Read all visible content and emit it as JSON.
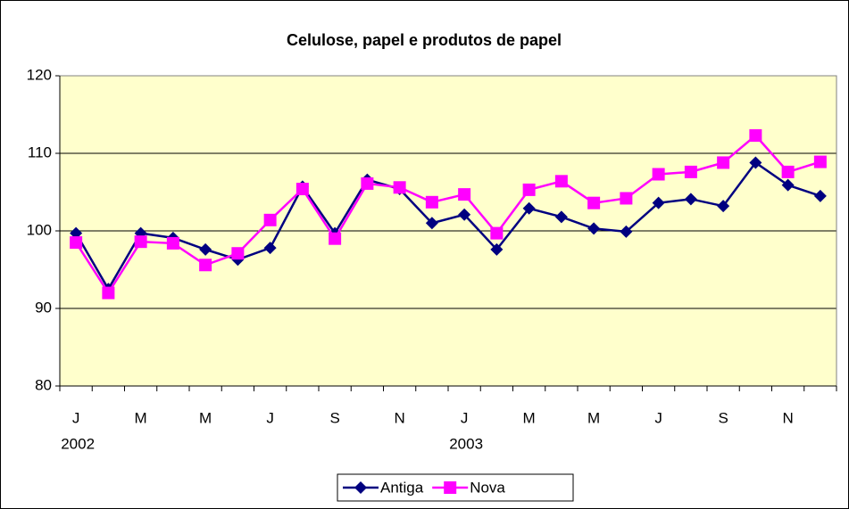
{
  "chart_data": {
    "type": "line",
    "title": "Celulose, papel e produtos de papel",
    "categories": [
      "J",
      null,
      "M",
      null,
      "M",
      null,
      "J",
      null,
      "S",
      null,
      "N",
      null,
      "J",
      null,
      "M",
      null,
      "M",
      null,
      "J",
      null,
      "S",
      null,
      "N",
      null
    ],
    "x_groups": [
      "2002",
      null,
      null,
      null,
      null,
      null,
      null,
      null,
      null,
      null,
      null,
      null,
      "2003",
      null,
      null,
      null,
      null,
      null,
      null,
      null,
      null,
      null,
      null,
      null
    ],
    "series": [
      {
        "name": "Antiga",
        "color": "#000080",
        "marker": "diamond",
        "values": [
          99.7,
          92.5,
          99.7,
          99.1,
          97.6,
          96.3,
          97.8,
          105.7,
          99.7,
          106.6,
          105.4,
          101.0,
          102.1,
          97.6,
          102.9,
          101.8,
          100.3,
          99.9,
          103.6,
          104.1,
          103.2,
          108.8,
          105.9,
          104.5
        ]
      },
      {
        "name": "Nova",
        "color": "#ff00ff",
        "marker": "square",
        "values": [
          98.5,
          92.0,
          98.6,
          98.4,
          95.6,
          97.1,
          101.4,
          105.4,
          99.0,
          106.1,
          105.6,
          103.7,
          104.7,
          99.7,
          105.3,
          106.4,
          103.6,
          104.2,
          107.3,
          107.6,
          108.8,
          112.3,
          107.6,
          108.9
        ]
      }
    ],
    "ylim": [
      80,
      120
    ],
    "yticks": [
      80,
      90,
      100,
      110,
      120
    ],
    "grid": true,
    "plot_background": "#ffffcc",
    "legend": "bottom"
  }
}
